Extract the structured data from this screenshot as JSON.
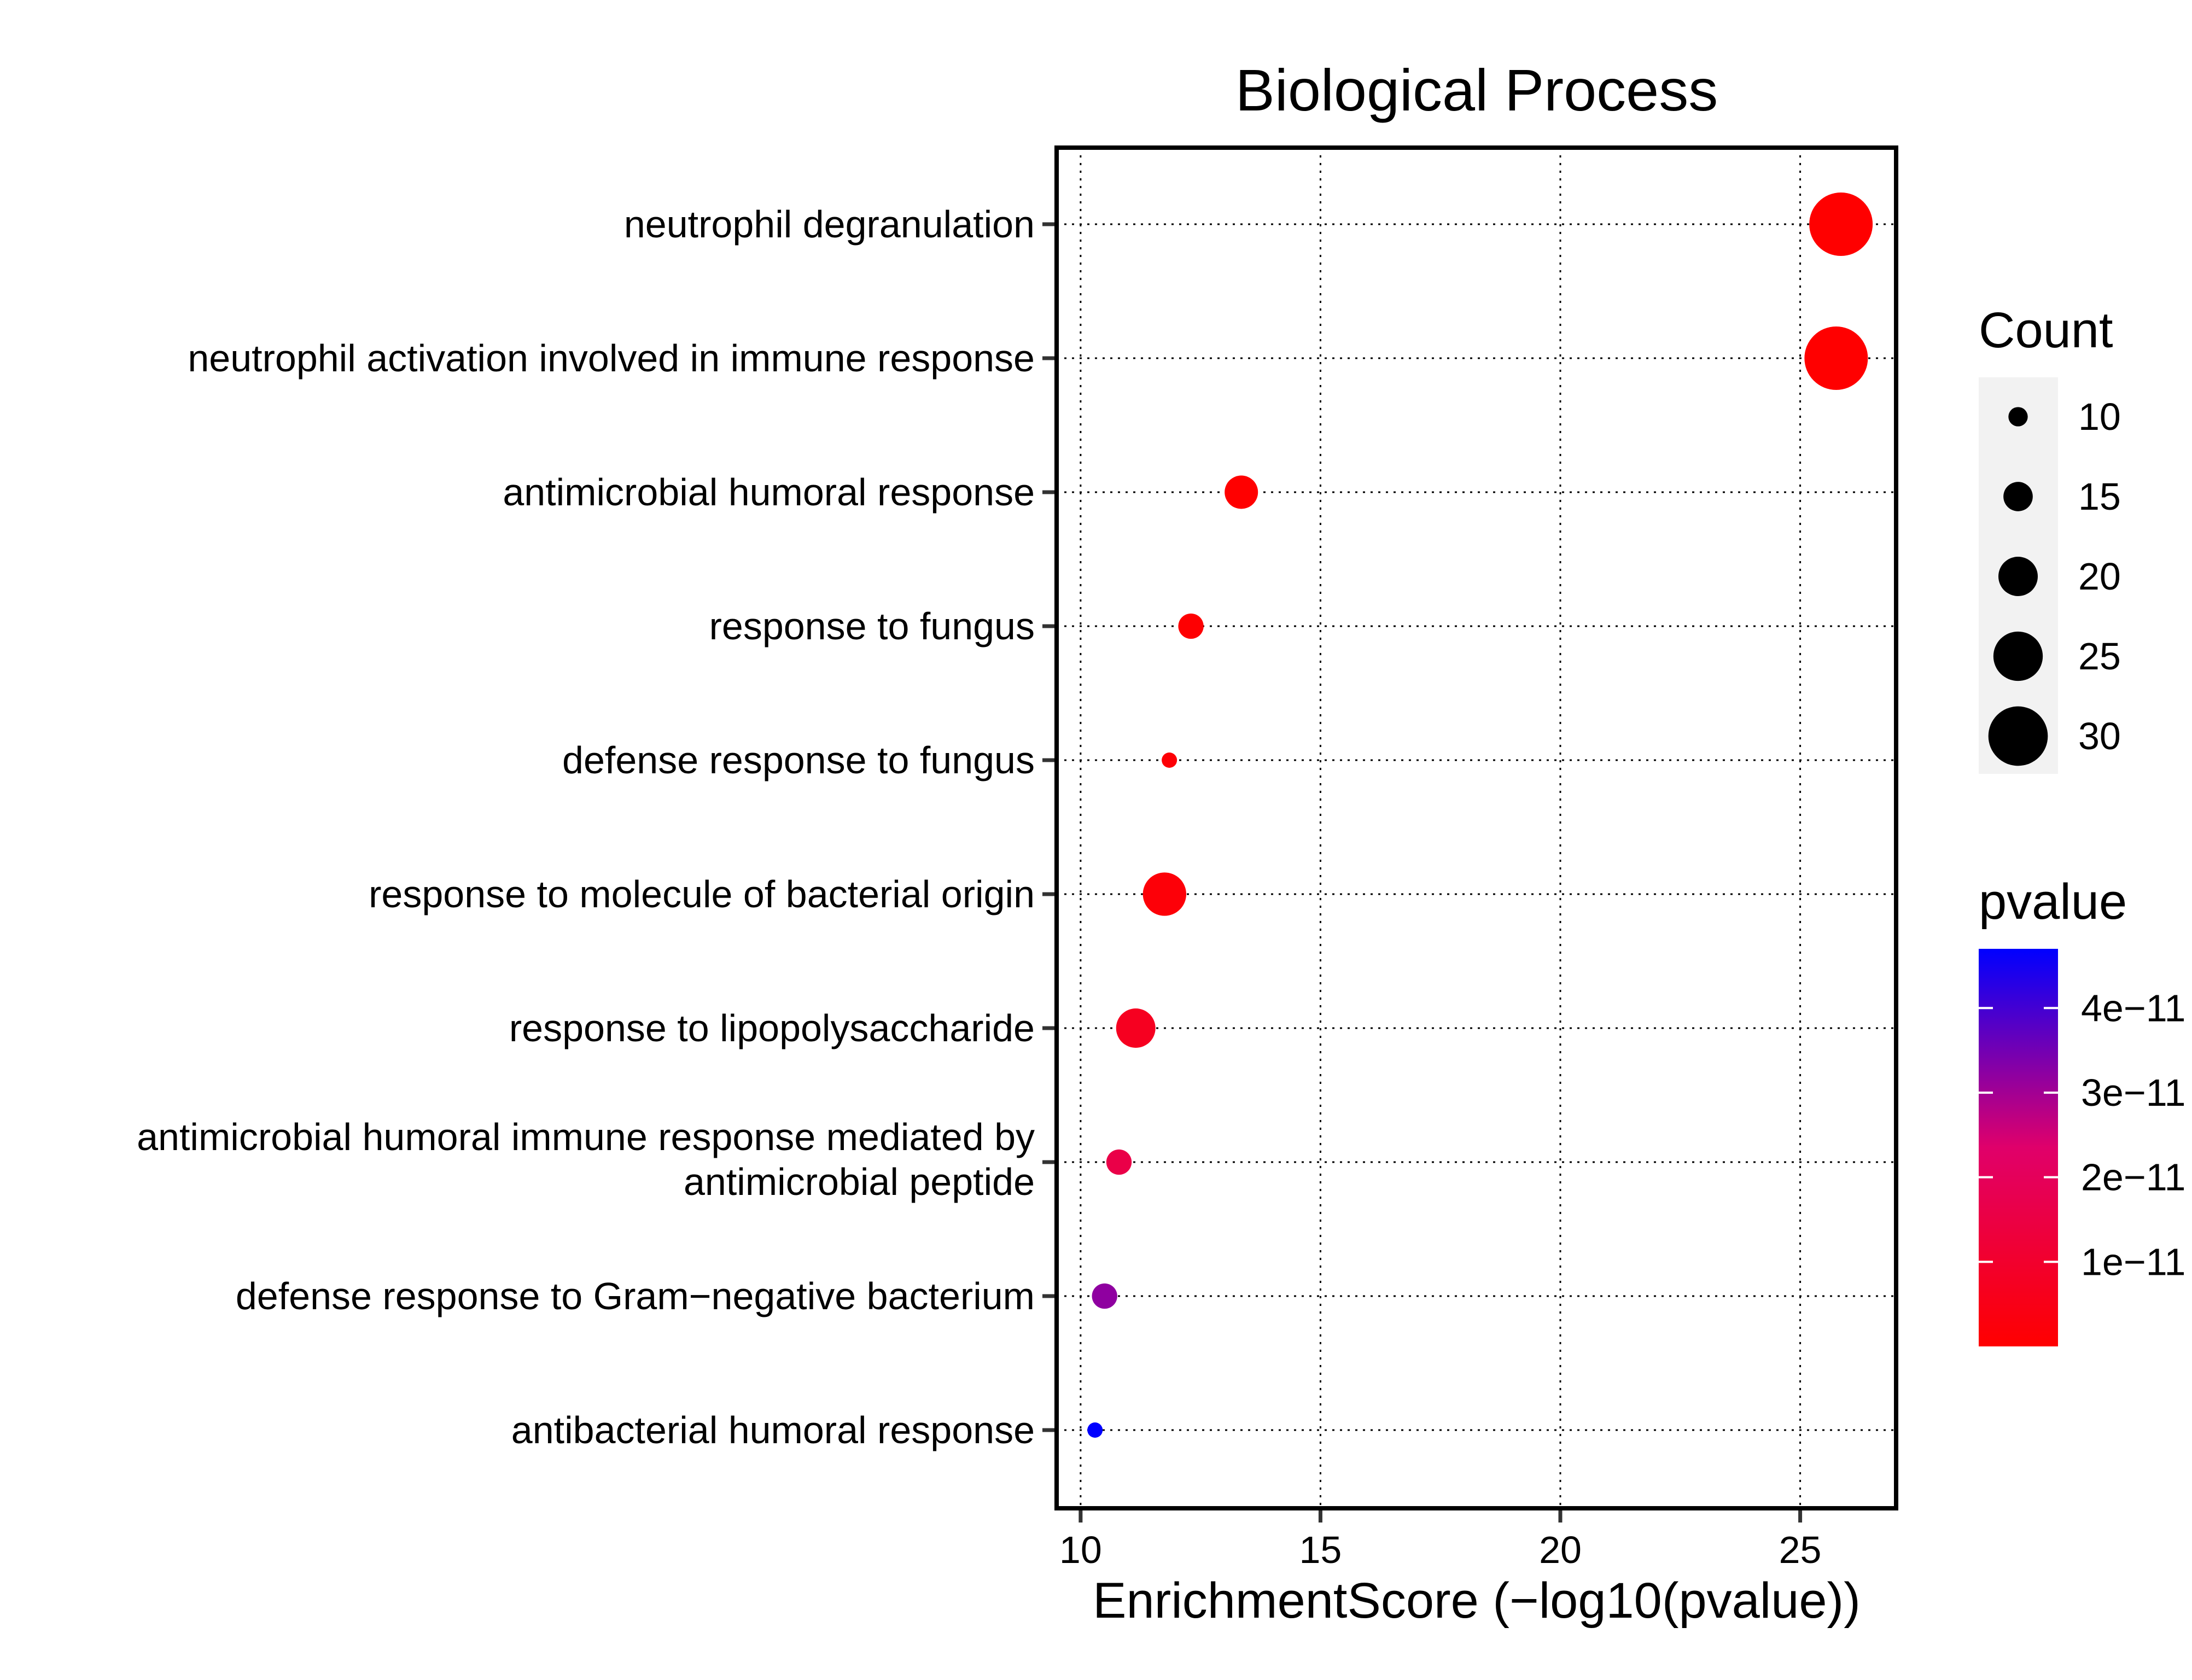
{
  "chart_data": {
    "type": "scatter",
    "title": "Biological Process",
    "xlabel": "EnrichmentScore (−log10(pvalue))",
    "ylabel": "",
    "xlim": [
      9.5,
      27
    ],
    "x_ticks": [
      "10",
      "15",
      "20",
      "25"
    ],
    "x_tick_values": [
      10,
      15,
      20,
      25
    ],
    "grid": true,
    "grid_style": "dotted",
    "categories": [
      "neutrophil degranulation",
      "neutrophil activation involved in immune response",
      "antimicrobial humoral response",
      "response to fungus",
      "defense response to fungus",
      "response to molecule of bacterial origin",
      "response to lipopolysaccharide",
      [
        "antimicrobial humoral immune response mediated by",
        "antimicrobial peptide"
      ],
      "defense response to Gram−negative bacterium",
      "antibacterial humoral response"
    ],
    "series": [
      {
        "x": [
          25.85,
          25.75,
          13.35,
          12.3,
          11.85,
          11.75,
          11.15,
          10.8,
          10.5,
          10.3
        ],
        "count": [
          32,
          32,
          17,
          13,
          8,
          22,
          20,
          13,
          13,
          8
        ],
        "pvalue": [
          1.5e-26,
          1.8e-26,
          4.5e-14,
          5e-13,
          1.4e-12,
          1.8e-12,
          7e-12,
          1.6e-11,
          3.2e-11,
          5e-11
        ]
      }
    ],
    "legend_placement": "right",
    "size_legend": {
      "title": "Count",
      "labels": [
        "10",
        "15",
        "20",
        "25",
        "30"
      ],
      "values": [
        10,
        15,
        20,
        25,
        30
      ]
    },
    "color_legend": {
      "title": "pvalue",
      "labels": [
        "4e−11",
        "3e−11",
        "2e−11",
        "1e−11"
      ],
      "values": [
        4e-11,
        3e-11,
        2e-11,
        1e-11
      ],
      "range": [
        0,
        4.7e-11
      ],
      "low_color": "#ff0000",
      "high_color": "#0000ff"
    }
  }
}
